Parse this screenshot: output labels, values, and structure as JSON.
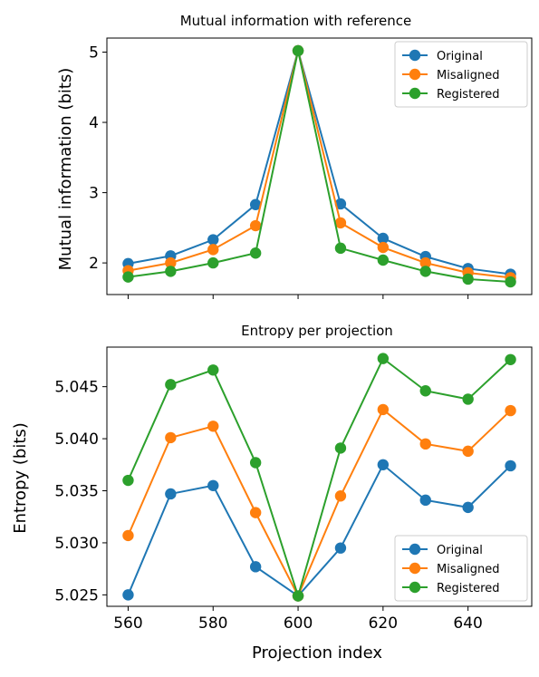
{
  "chart_data": [
    {
      "type": "line",
      "title": "Mutual information with reference",
      "xlabel": "",
      "ylabel": "Mutual information (bits)",
      "x": [
        560,
        570,
        580,
        590,
        600,
        610,
        620,
        630,
        640,
        650
      ],
      "xlim": [
        555,
        655
      ],
      "ylim": [
        1.55,
        5.2
      ],
      "yticks": [
        2,
        3,
        4,
        5
      ],
      "xtick_labels_visible": false,
      "legend": "upper right",
      "series": [
        {
          "name": "Original",
          "color": "#1f77b4",
          "values": [
            1.99,
            2.1,
            2.33,
            2.83,
            5.02,
            2.84,
            2.35,
            2.09,
            1.92,
            1.84
          ]
        },
        {
          "name": "Misaligned",
          "color": "#ff7f0e",
          "values": [
            1.89,
            2.0,
            2.19,
            2.53,
            5.02,
            2.57,
            2.22,
            2.0,
            1.86,
            1.79
          ]
        },
        {
          "name": "Registered",
          "color": "#2ca02c",
          "values": [
            1.8,
            1.88,
            2.0,
            2.14,
            5.02,
            2.21,
            2.04,
            1.88,
            1.77,
            1.73
          ]
        }
      ]
    },
    {
      "type": "line",
      "title": "Entropy per projection",
      "xlabel": "Projection index",
      "ylabel": "Entropy (bits)",
      "x": [
        560,
        570,
        580,
        590,
        600,
        610,
        620,
        630,
        640,
        650
      ],
      "xlim": [
        555,
        655
      ],
      "ylim": [
        5.0239,
        5.0488
      ],
      "yticks": [
        5.025,
        5.03,
        5.035,
        5.04,
        5.045
      ],
      "ytick_labels": [
        "5.025",
        "5.030",
        "5.035",
        "5.040",
        "5.045"
      ],
      "xticks": [
        560,
        580,
        600,
        620,
        640
      ],
      "xtick_labels": [
        "560",
        "580",
        "600",
        "620",
        "640"
      ],
      "legend": "lower right",
      "series": [
        {
          "name": "Original",
          "color": "#1f77b4",
          "values": [
            5.025,
            5.0347,
            5.0355,
            5.0277,
            5.0249,
            5.0295,
            5.0375,
            5.0341,
            5.0334,
            5.0374
          ]
        },
        {
          "name": "Misaligned",
          "color": "#ff7f0e",
          "values": [
            5.0307,
            5.0401,
            5.0412,
            5.0329,
            5.0249,
            5.0345,
            5.0428,
            5.0395,
            5.0388,
            5.0427
          ]
        },
        {
          "name": "Registered",
          "color": "#2ca02c",
          "values": [
            5.036,
            5.0452,
            5.0466,
            5.0377,
            5.0249,
            5.0391,
            5.0477,
            5.0446,
            5.0438,
            5.0476
          ]
        }
      ]
    }
  ]
}
